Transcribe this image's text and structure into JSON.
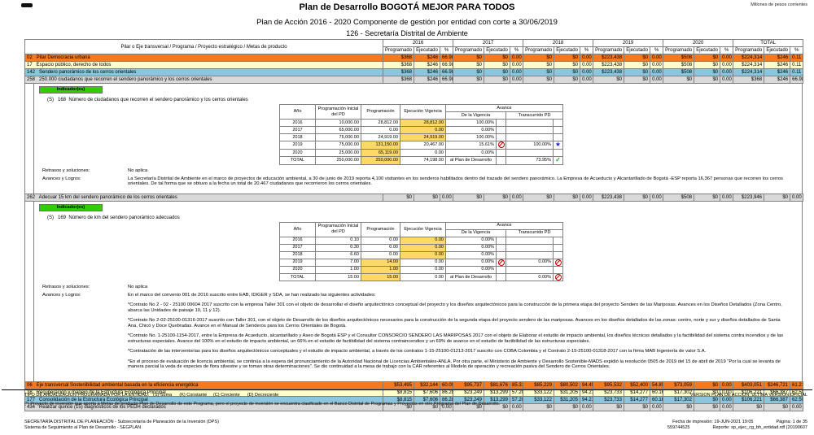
{
  "meta": {
    "currency_note": "Millones de pesos corrientes"
  },
  "header": {
    "title": "Plan de Desarrollo BOGOTÁ MEJOR PARA TODOS",
    "subtitle": "Plan de Acción 2016 - 2020 Componente de gestión por entidad con corte a 30/06/2019",
    "entity": "126 - Secretaría Distrital de Ambiente"
  },
  "table": {
    "row_header": "Pilar o Eje transversal / Programa  / Proyecto estratégico / Metas de producto",
    "years": [
      "2016",
      "2017",
      "2018",
      "2019",
      "2020",
      "TOTAL"
    ],
    "sub_headers": [
      "Programado",
      "Ejecutado",
      "%"
    ],
    "group1": [
      {
        "style": "orange",
        "label": "02   Pilar Democracia urbana",
        "values": [
          "$368",
          "$246",
          "66.98",
          "$0",
          "$0",
          "0.00",
          "$0",
          "$0",
          "0.00",
          "$223,438",
          "$0",
          "0.00",
          "$508",
          "$0",
          "0.00",
          "$224,314",
          "$246",
          "0.11"
        ]
      },
      {
        "style": "yellow",
        "label": "17   Espacio público, derecho de todos",
        "values": [
          "$368",
          "$246",
          "66.98",
          "$0",
          "$0",
          "0.00",
          "$0",
          "$0",
          "0.00",
          "$223,438",
          "$0",
          "0.00",
          "$508",
          "$0",
          "0.00",
          "$224,314",
          "$246",
          "0.11"
        ]
      },
      {
        "style": "blue",
        "label": "142   Sendero panorámico de los cerros orientales",
        "values": [
          "$368",
          "$246",
          "66.98",
          "$0",
          "$0",
          "0.00",
          "$0",
          "$0",
          "0.00",
          "$223,438",
          "$0",
          "0.00",
          "$508",
          "$0",
          "0.00",
          "$224,314",
          "$246",
          "0.11"
        ]
      },
      {
        "style": "gray",
        "label": "258   250.000 ciudadanos que recorren el sendero panorámico y los cerros orientales",
        "values": [
          "$368",
          "$246",
          "66.98",
          "$0",
          "$0",
          "0.00",
          "$0",
          "$0",
          "0.00",
          "$0",
          "$0",
          "0.00",
          "$0",
          "$0",
          "0.00",
          "$368",
          "$246",
          "66.98"
        ]
      }
    ],
    "row262": [
      {
        "style": "gray",
        "label": "262   Adecuar 15 km del sendero panorámico de los cerros orientales",
        "values": [
          "$0",
          "$0",
          "0.00",
          "$0",
          "$0",
          "0.00",
          "$0",
          "$0",
          "0.00",
          "$223,438",
          "$0",
          "0.00",
          "$508",
          "$0",
          "0.00",
          "$223,946",
          "$0",
          "0.00"
        ]
      }
    ],
    "group2": [
      {
        "style": "orange",
        "label": "06   Eje transversal Sostenibilidad ambiental basada en la eficiencia energética",
        "values": [
          "$53,495",
          "$32,144",
          "60.09",
          "$95,737",
          "$81,676",
          "85.31",
          "$85,229",
          "$80,502",
          "94.45",
          "$95,532",
          "$52,400",
          "54.85",
          "$73,059",
          "$0",
          "0.00",
          "$403,051",
          "$246,721",
          "61.21"
        ]
      },
      {
        "style": "yellow",
        "label": "38   Recuperación y manejo de la Estructura Ecológica Principal",
        "values": [
          "$8,815",
          "$7,606",
          "86.28",
          "$23,249",
          "$13,299",
          "57.20",
          "$33,122",
          "$31,205",
          "94.21",
          "$23,733",
          "$14,277",
          "60.16",
          "$17,302",
          "$0",
          "0.00",
          "$106,221",
          "$66,387",
          "62.50"
        ]
      },
      {
        "style": "blue",
        "label": "177   Consolidación de la Estructura Ecológica Principal",
        "values": [
          "$8,815",
          "$7,606",
          "86.28",
          "$23,249",
          "$13,299",
          "57.20",
          "$33,122",
          "$31,205",
          "94.21",
          "$23,733",
          "$14,277",
          "60.16",
          "$17,302",
          "$0",
          "0.00",
          "$106,221",
          "$66,387",
          "62.50"
        ]
      },
      {
        "style": "gray",
        "label": "434   Realizar quince (15) diagnósticos de los PEDH declarados",
        "values": [
          "$0",
          "$0",
          "0.00",
          "$0",
          "$0",
          "0.00",
          "$0",
          "$0",
          "0.00",
          "$0",
          "$0",
          "0.00",
          "$0",
          "$0",
          "0.00",
          "$0",
          "$0",
          "0.00"
        ]
      }
    ]
  },
  "ind_headers": {
    "ano": "Año",
    "inicial": "Programación Inicial del PD",
    "prog": "Programación",
    "ejec": "Ejecución Vigencia",
    "avance": "Avance",
    "vigencia": "De la Vigencia",
    "transcurrido": "Transcurrido PD"
  },
  "indicators": [
    {
      "badge": "Indicador(es)",
      "label": "(S)   168  Número de ciudadanos que recorren el sendero panorámico y los cerros orientales",
      "table_rows": [
        {
          "ano": "2016",
          "inicial": "10,000.00",
          "prog": "28,812.00",
          "ejec": "28,812.00",
          "hl": "ejec",
          "vig": "100.00%",
          "trans": ""
        },
        {
          "ano": "2017",
          "inicial": "65,000.00",
          "prog": "0.00",
          "ejec": "0.00",
          "hl": "ejec",
          "vig": "0.00%",
          "trans": ""
        },
        {
          "ano": "2018",
          "inicial": "75,000.00",
          "prog": "24,919.00",
          "ejec": "24,919.00",
          "hl": "ejec",
          "vig": "100.00%",
          "trans": ""
        },
        {
          "ano": "2019",
          "inicial": "75,000.00",
          "prog": "131,150.00",
          "ejec": "20,467.00",
          "hl": "prog",
          "vig": "15.61%",
          "vig_icon": "no-entry",
          "trans": "100.00%",
          "trans_icon": "star"
        },
        {
          "ano": "2020",
          "inicial": "25,000.00",
          "prog": "65,119.00",
          "ejec": "0.00",
          "hl": "prog",
          "vig": "0.00%",
          "trans": ""
        },
        {
          "ano": "TOTAL",
          "inicial": "250,000.00",
          "prog": "250,000.00",
          "ejec": "74,198.00",
          "hl": "prog",
          "vig": "al Plan de Desarrollo",
          "total": true,
          "trans": "73.95%",
          "trans_icon": "check"
        }
      ],
      "retrasos_label": "Retrasos y soluciones:",
      "retrasos": "No aplica",
      "avances_label": "Avances y Logros:",
      "avances_intro": "La Secretaría Distrital de Ambiente en el marco de proyectos de educación ambiental, a 30 de junio de 2019  reporta 4,100 visitantes en los senderos habilitados dentro del trazado del sendero panorámico. La Empresa de Acueducto y Alcantarillado de Bogotá -ESP reporta 16,367 personas que recorren los cerros orientales. De tal forma que se obtuvo a la fecha un total de 20.467 ciudadanos que recorrieron los cerros orientales.",
      "paragraphs": []
    },
    {
      "badge": "Indicador(es)",
      "label": "(S)   169  Número de km del sendero panorámico adecuados",
      "table_rows": [
        {
          "ano": "2016",
          "inicial": "0.10",
          "prog": "0.00",
          "ejec": "0.00",
          "hl": "ejec",
          "vig": "0.00%",
          "trans": ""
        },
        {
          "ano": "2017",
          "inicial": "0.30",
          "prog": "0.00",
          "ejec": "0.00",
          "hl": "ejec",
          "vig": "0.00%",
          "trans": ""
        },
        {
          "ano": "2018",
          "inicial": "6.60",
          "prog": "0.00",
          "ejec": "0.00",
          "hl": "ejec",
          "vig": "0.00%",
          "trans": ""
        },
        {
          "ano": "2019",
          "inicial": "7.00",
          "prog": "14.00",
          "ejec": "0.00",
          "hl": "prog",
          "vig": "0.00%",
          "vig_icon": "no-entry",
          "trans": "0.00%",
          "trans_icon": "no-entry"
        },
        {
          "ano": "2020",
          "inicial": "1.00",
          "prog": "1.00",
          "ejec": "0.00",
          "hl": "prog",
          "vig": "0.00%",
          "trans": ""
        },
        {
          "ano": "TOTAL",
          "inicial": "15.00",
          "prog": "15.00",
          "ejec": "0.00",
          "hl": "prog",
          "vig": "al Plan de Desarrollo",
          "total": true,
          "trans": "0.00%",
          "trans_icon": "no-entry"
        }
      ],
      "retrasos_label": "Retrasos y soluciones:",
      "retrasos": "No aplica",
      "avances_label": "Avances y Logros:",
      "avances_intro": "En el marco del convenio 001 de 2016 suscrito entre EAB, IDIGER y SDA, se han realizado las siguientes actividades:",
      "paragraphs": [
        "*Contrato No 2 - 02 - 25100 00604 2017 suscrito con la empresa Taller 301 con el objeto de desarrollar el diseño arquitectónico conceptual del proyecto y los diseños arquitectónicos para la construcción de la primera etapa del proyecto Sendero de las Mariposas.  Avances en los Diseños Detallados (Zona Centro, abarca las Unidades de paisaje 10, 11 y 12).",
        "*Contrato No 2-02-25100-01316-2017 suscrito con Taller 301, con el objeto de Desarrollo de los diseños arquitectónicos necesarios para la construcción de la segunda etapa del proyecto sendero de las mariposas. Avances en los diseños detallados de las zonas: centro, norte y sur y diseños detallados de Santa Ana, Chicó y Doce Quebradas. Avance en el Manual de Senderos para los Cerros Orientales de Bogotá.",
        "*Contrato No. 1-25100-1154-2017, entre la Empresa de Acueducto, alcantarillado y Aseo de Bogotá ESP y el Consultor CONSORCIO SENDERO LAS MARIPOSAS 2017 con el objeto de Elaborar el estudio de impacto ambiental, los diseños técnicos detallados y la factibilidad del sistema contra incendios y de las estructuras especiales. Avance del 100% en el estudio de impacto ambiental, un 66% en el estudio de factibilidad del sistema contraincendios y un 69% de avance en el estudio de factibilidad de las estructuras especiales.",
        "*Contratación de las interventorías para los diseños arquitectónicos conceptuales y el estudio de impacto ambiental, a través de los contratos 1-15-25100-01213-2017 suscrito con COBA Colombia y el Contrato 2-15-25100-01318-2017 con la firma MAB Ingeniería de valor S.A.",
        "*En el proceso de evaluación de licencia ambiental, se continúa a la espera del pronunciamiento de la Autoridad Nacional de Licencias Ambientales-ANLA. Por otra parte, el Ministerio de Ambiente y Desarrollo Sostenible-MADS expidió la resolución 0505 de 2019 del 15 de abril de 2019 \"Por la cual se levanta de manera parcial la veda de especies de flora silvestre y se toman otras determinaciones\". Se dio continuidad a la mesa de trabajo con la CAR referentes al Modelo de operación y recreación pasiva del Sendero de Cerros Orientales."
      ]
    }
  ],
  "footer": {
    "tipo": "TIPO DE ANUALIZACION PROGRAMADA POR LA ENTIDAD:   (S) Suma      (K) Constante     (C) Creciente      (D) Decreciente",
    "version": "VERSION PLAN DE ACCION: ULTIMA VERSION OFICIAL",
    "note": "(*) Proyecto de inversión que aporta a Metas de producto Plan de Desarrollo de este Programa, pero el proyecto de inversión se encuentra clasificado en el Banco Distrital de Programas y Proyectos en otro Programa del Plan de Desarrollo.",
    "org1": "SECRETARÍA DISTRITAL DE PLANEACIÓN - Subsecretaría de Planeación de la Inversión (DPS)",
    "org2": "Sistema de Seguimiento al Plan de Desarrollo - SEGPLAN",
    "fecha": "Fecha de impresión: 19-JUN-2021 19:05",
    "pagina": "Página: 1 de 35",
    "codigo": "559744525",
    "reporte": "Reporte: sp_ejec_cg_bh_entidad.rdf (20190607"
  },
  "colors": {
    "pillar_row": "#F4791F",
    "program_row": "#FFFFCC",
    "project_row": "#8CC6DE",
    "meta_row": "#D9D9D9",
    "indicator_badge": "#33CC00",
    "highlight_cell": "#FFD966",
    "flag_no_entry": "#CC0000",
    "flag_star": "#1F1FD6",
    "flag_check": "#2F9E2F"
  }
}
